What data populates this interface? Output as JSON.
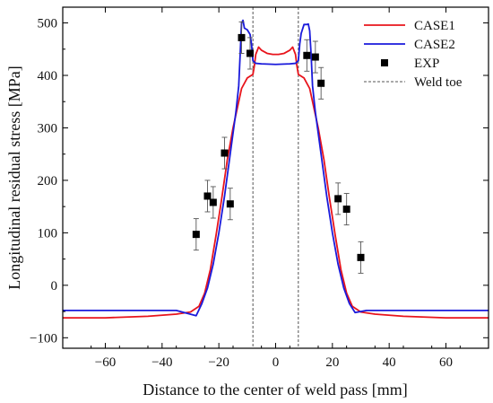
{
  "chart_data": {
    "type": "line",
    "title": "",
    "xlabel": "Distance to the center of weld pass [mm]",
    "ylabel": "Longitudinal residual stress [MPa]",
    "xlim": [
      -75,
      75
    ],
    "ylim": [
      -120,
      530
    ],
    "x_ticks": [
      -60,
      -40,
      -20,
      0,
      20,
      40,
      60
    ],
    "y_ticks": [
      -100,
      0,
      100,
      200,
      300,
      400,
      500
    ],
    "grid": false,
    "legend_position": "top-right",
    "weld_toe_x": [
      -8,
      8
    ],
    "series": [
      {
        "name": "CASE1",
        "color": "#e8141c",
        "points": [
          [
            -75,
            -62
          ],
          [
            -60,
            -62
          ],
          [
            -45,
            -59
          ],
          [
            -35,
            -55
          ],
          [
            -30,
            -51
          ],
          [
            -27,
            -40
          ],
          [
            -25,
            -15
          ],
          [
            -23,
            30
          ],
          [
            -21,
            95
          ],
          [
            -19,
            165
          ],
          [
            -17,
            240
          ],
          [
            -15,
            300
          ],
          [
            -13,
            350
          ],
          [
            -12,
            375
          ],
          [
            -10,
            395
          ],
          [
            -8,
            402
          ],
          [
            -7.5,
            418
          ],
          [
            -7,
            440
          ],
          [
            -6,
            454
          ],
          [
            -5,
            448
          ],
          [
            -3,
            442
          ],
          [
            -1,
            440
          ],
          [
            0,
            440
          ],
          [
            1,
            440
          ],
          [
            3,
            442
          ],
          [
            5,
            448
          ],
          [
            6,
            454
          ],
          [
            7,
            440
          ],
          [
            7.5,
            418
          ],
          [
            8,
            402
          ],
          [
            10,
            395
          ],
          [
            12,
            375
          ],
          [
            13,
            350
          ],
          [
            15,
            300
          ],
          [
            17,
            240
          ],
          [
            19,
            165
          ],
          [
            21,
            95
          ],
          [
            23,
            30
          ],
          [
            25,
            -15
          ],
          [
            27,
            -40
          ],
          [
            30,
            -51
          ],
          [
            35,
            -55
          ],
          [
            45,
            -59
          ],
          [
            60,
            -62
          ],
          [
            75,
            -62
          ]
        ]
      },
      {
        "name": "CASE2",
        "color": "#1a1adb",
        "points": [
          [
            -75,
            -48
          ],
          [
            -50,
            -48
          ],
          [
            -35,
            -48
          ],
          [
            -28,
            -58
          ],
          [
            -26,
            -35
          ],
          [
            -24,
            -5
          ],
          [
            -22,
            40
          ],
          [
            -20,
            100
          ],
          [
            -18,
            170
          ],
          [
            -16,
            250
          ],
          [
            -14,
            330
          ],
          [
            -13,
            380
          ],
          [
            -12.5,
            440
          ],
          [
            -12,
            500
          ],
          [
            -11.5,
            505
          ],
          [
            -11,
            490
          ],
          [
            -10,
            487
          ],
          [
            -9,
            478
          ],
          [
            -8.5,
            460
          ],
          [
            -8,
            428
          ],
          [
            -7,
            423
          ],
          [
            -5,
            422
          ],
          [
            0,
            421
          ],
          [
            5,
            422
          ],
          [
            7,
            423
          ],
          [
            8,
            428
          ],
          [
            8.5,
            460
          ],
          [
            9,
            480
          ],
          [
            10,
            497
          ],
          [
            11,
            497
          ],
          [
            11.5,
            498
          ],
          [
            12,
            485
          ],
          [
            12.5,
            440
          ],
          [
            13,
            380
          ],
          [
            14,
            330
          ],
          [
            16,
            250
          ],
          [
            18,
            170
          ],
          [
            20,
            100
          ],
          [
            22,
            40
          ],
          [
            24,
            -5
          ],
          [
            26,
            -35
          ],
          [
            28,
            -52
          ],
          [
            32,
            -48
          ],
          [
            50,
            -48
          ],
          [
            75,
            -48
          ]
        ]
      },
      {
        "name": "EXP",
        "color": "#000000",
        "points": [
          [
            -28,
            97
          ],
          [
            -24,
            170
          ],
          [
            -22,
            158
          ],
          [
            -18,
            252
          ],
          [
            -16,
            155
          ],
          [
            -12,
            472
          ],
          [
            -9,
            442
          ],
          [
            11,
            438
          ],
          [
            14,
            435
          ],
          [
            16,
            385
          ],
          [
            22,
            165
          ],
          [
            25,
            145
          ],
          [
            30,
            53
          ]
        ],
        "errors": [
          30,
          30,
          30,
          30,
          30,
          30,
          30,
          30,
          30,
          30,
          30,
          30,
          30
        ]
      },
      {
        "name": "Weld toe",
        "color": "#555555"
      }
    ]
  }
}
